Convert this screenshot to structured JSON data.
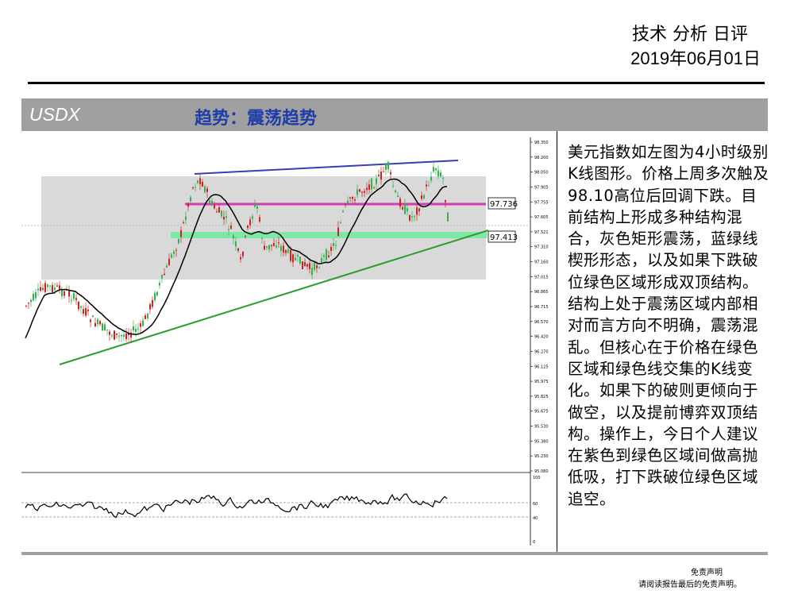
{
  "header": {
    "title": "技术 分析 日评",
    "date": "2019年06月01日"
  },
  "band": {
    "symbol": "USDX",
    "trend": "趋势：震荡趋势"
  },
  "analysis": {
    "text": "美元指数如左图为4小时级别K线图形。价格上周多次触及98.10高位后回调下跌。目前结构上形成多种结构混合，灰色矩形震荡，蓝绿线楔形形态，以及如果下跌破位绿色区域形成双顶结构。结构上处于震荡区域内部相对而言方向不明确，震荡混乱。但核心在于价格在绿色区域和绿色线交集的K线变化。如果下的破则更倾向于做空，以及提前博弈双顶结构。操作上，今日个人建议在紫色到绿色区域间做高抛低吸，打下跌破位绿色区域追空。"
  },
  "chart": {
    "level_labels": {
      "magenta": "97.736",
      "green": "97.413"
    },
    "price_ticks": [
      "98.350",
      "98.200",
      "98.050",
      "97.905",
      "97.755",
      "97.605",
      "97.521",
      "97.310",
      "97.160",
      "97.015",
      "96.865",
      "96.715",
      "96.570",
      "96.420",
      "96.270",
      "96.125",
      "95.975",
      "95.825",
      "95.675",
      "95.530",
      "95.380",
      "95.230",
      "95.080"
    ],
    "rsi_ticks": [
      "100",
      "60",
      "40",
      "0"
    ],
    "colors": {
      "magenta_line": "#d23bb5",
      "green_zone": "#7ee8a8",
      "trend_green": "#2e9b2e",
      "upper_blue": "#3a3fb0",
      "candle_up": "#2fb34a",
      "candle_down": "#d02020",
      "range_box": "#d9d9d9"
    }
  },
  "footer": {
    "disclaimer_title": "免责声明",
    "disclaimer_text": "请阅读报告最后的免责声明。"
  }
}
